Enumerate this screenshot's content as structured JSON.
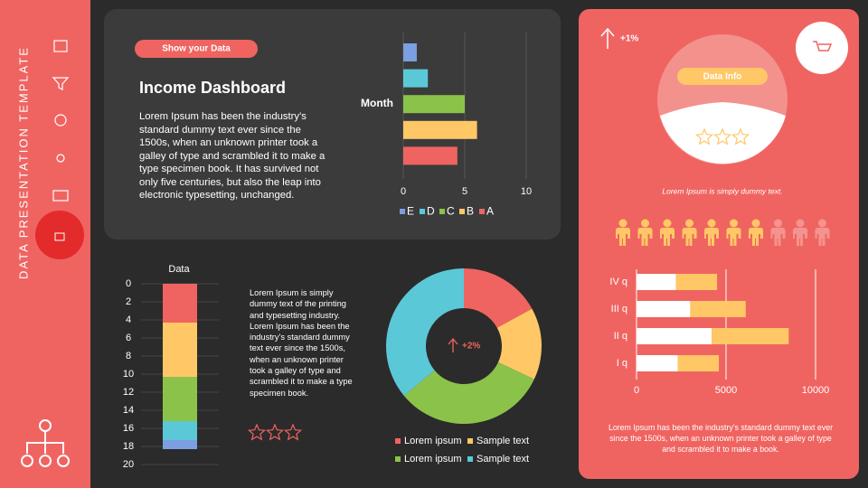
{
  "sidebar": {
    "title": "DATA PRESENTATION TEMPLATE"
  },
  "intro": {
    "button": "Show your Data",
    "title": "Income Dashboard",
    "text": "Lorem Ipsum has been the industry's standard dummy text ever since the 1500s, when an unknown printer took a galley of type and scrambled it to make a type specimen book. It has survived not only five centuries, but also the leap into electronic typesetting, unchanged."
  },
  "chart_data": [
    {
      "type": "bar",
      "orientation": "horizontal",
      "y_label": "Month",
      "categories": [
        "E",
        "D",
        "C",
        "B",
        "A"
      ],
      "values": [
        1.1,
        2,
        5,
        6,
        4.4
      ],
      "colors": [
        "#7b9fe0",
        "#5bc8d8",
        "#8bc34a",
        "#ffc766",
        "#ef6461"
      ],
      "xlim": [
        0,
        10
      ],
      "xticks": [
        0,
        5,
        10
      ],
      "grid": true,
      "legend": "bottom"
    },
    {
      "type": "stacked_bar",
      "orientation": "vertical",
      "title": "Data",
      "categories": [
        null
      ],
      "series": [
        {
          "color": "#ef6461",
          "values": [
            4.3
          ]
        },
        {
          "color": "#ffc766",
          "values": [
            6
          ]
        },
        {
          "color": "#8bc34a",
          "values": [
            4.9
          ]
        },
        {
          "color": "#5bc8d8",
          "values": [
            2.1
          ]
        },
        {
          "color": "#7b9fe0",
          "values": [
            1
          ]
        }
      ],
      "ylim": [
        0,
        20
      ],
      "inverted": true,
      "yticks": [
        0,
        2,
        4,
        6,
        8,
        10,
        12,
        14,
        16,
        18,
        20
      ],
      "grid": true
    },
    {
      "type": "donut",
      "center_label": "+2%",
      "labels": [
        "Lorem ipsum",
        "Sample text",
        "Lorem ipsum",
        "Sample text"
      ],
      "values": [
        17,
        15,
        32,
        36
      ],
      "colors": [
        "#ef6461",
        "#ffc766",
        "#8bc34a",
        "#5bc8d8"
      ],
      "legend": "bottom"
    },
    {
      "type": "stacked_bar",
      "orientation": "horizontal",
      "categories": [
        "I q",
        "II q",
        "III q",
        "IV q"
      ],
      "series": [
        {
          "color": "#ffffff",
          "values": [
            2300,
            4200,
            3000,
            2200
          ]
        },
        {
          "color": "#ffc766",
          "values": [
            2300,
            4300,
            3100,
            2300
          ]
        }
      ],
      "xlim": [
        0,
        10000
      ],
      "xticks": [
        0,
        5000,
        10000
      ],
      "grid": true
    }
  ],
  "text_block": "Lorem Ipsum is simply dummy text of the printing and typesetting industry. Lorem Ipsum has been the industry's standard dummy text ever since the 1500s, when an unknown printer took a galley of type and scrambled it to make a type specimen book.",
  "info": {
    "change": "+1%",
    "button": "Data Info",
    "caption": "Lorem Ipsum is simply dummy text.",
    "people_filled": 7,
    "people_total": 10
  },
  "footer_text": "Lorem Ipsum has been the industry's standard dummy text ever since the 1500s, when an unknown printer took a galley of type and scrambled it to make a book."
}
